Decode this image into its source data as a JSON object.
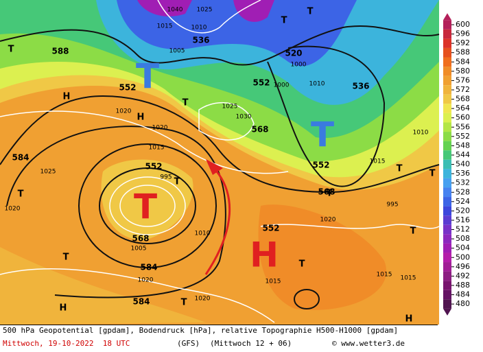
{
  "map": {
    "big_labels": [
      "T",
      "T",
      "T",
      "H"
    ],
    "contour_labels": [
      "588",
      "552",
      "536",
      "520",
      "552",
      "568",
      "552",
      "568",
      "584",
      "552",
      "568",
      "584",
      "584",
      "552",
      "536"
    ],
    "pressure_labels": [
      "1040",
      "1025",
      "1015",
      "1010",
      "1005",
      "995",
      "1000",
      "1010",
      "1020",
      "1025",
      "1030",
      "1020",
      "1025",
      "1015",
      "1020",
      "1010",
      "1005",
      "995",
      "1000",
      "1015",
      "1020",
      "1020",
      "1015",
      "1015",
      "1010",
      "1020",
      "1015"
    ],
    "small_labels": [
      "T",
      "T",
      "H",
      "H",
      "T",
      "T",
      "T",
      "T",
      "T",
      "T",
      "H",
      "T",
      "T",
      "T",
      "H",
      "T",
      "T"
    ]
  },
  "colorbar": {
    "ticks": [
      600,
      596,
      592,
      588,
      584,
      580,
      576,
      572,
      568,
      564,
      560,
      556,
      552,
      548,
      544,
      540,
      536,
      532,
      528,
      524,
      520,
      516,
      512,
      508,
      504,
      500,
      496,
      492,
      488,
      484,
      480
    ],
    "colors": [
      "#b4205a",
      "#c8283c",
      "#dc3228",
      "#e6501e",
      "#f06e1e",
      "#f08c28",
      "#f0a032",
      "#f0b43c",
      "#f0c846",
      "#f0e650",
      "#dcf050",
      "#b4e646",
      "#8cdc46",
      "#64d250",
      "#46c878",
      "#3cbeb4",
      "#3cb4dc",
      "#46a0f0",
      "#4682f0",
      "#3c64e6",
      "#3c46dc",
      "#5a3cd2",
      "#7832c8",
      "#8c28be",
      "#a01eb4",
      "#b41eaa",
      "#a01e96",
      "#8c1e82",
      "#78146e",
      "#641464",
      "#501450"
    ]
  },
  "footer": {
    "line1": "500 hPa Geopotential [gpdam], Bodendruck [hPa], relative Topographie H500-H1000 [gpdam]",
    "date": "Mittwoch, 19-10-2022  18 UTC",
    "model": "(GFS)",
    "run": "(Mittwoch 12 + 06)",
    "credit": "© www.wetter3.de"
  }
}
